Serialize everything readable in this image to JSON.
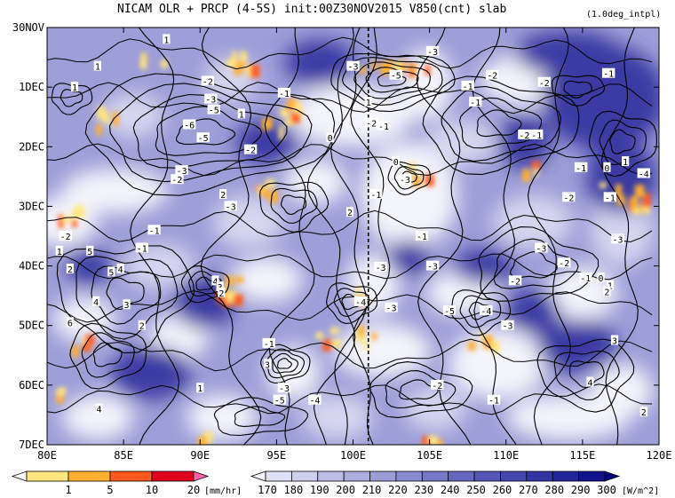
{
  "chart_data": {
    "type": "heatmap",
    "title": "NICAM  OLR + PRCP (4-5S) init:00Z30NOV2015 V850(cnt) slab",
    "note": "(1.0deg_intpl)",
    "x_ticks": [
      "80E",
      "85E",
      "90E",
      "95E",
      "100E",
      "105E",
      "110E",
      "115E",
      "120E"
    ],
    "y_ticks": [
      "30NOV",
      "1DEC",
      "2DEC",
      "3DEC",
      "4DEC",
      "5DEC",
      "6DEC",
      "7DEC"
    ],
    "x_range": [
      80,
      120
    ],
    "y_range_days": [
      0,
      7
    ],
    "reference_line_lon": 101,
    "prcp_colorbar": {
      "levels": [
        "1",
        "5",
        "10",
        "20"
      ],
      "unit": "[mm/hr]",
      "colors": [
        "#ffffff",
        "#ffe680",
        "#ffb030",
        "#ff5a1e",
        "#e0001e",
        "#ff66aa"
      ]
    },
    "olr_colorbar": {
      "levels": [
        "170",
        "180",
        "190",
        "200",
        "210",
        "220",
        "230",
        "240",
        "250",
        "260",
        "270",
        "280",
        "290",
        "300"
      ],
      "unit": "[W/m^2]",
      "colors": [
        "#f2f2fb",
        "#e0e0f4",
        "#cfcfee",
        "#bdbde7",
        "#acacdf",
        "#9b9bd8",
        "#8a8ad0",
        "#7878c8",
        "#6767c0",
        "#5656b7",
        "#4545ae",
        "#3434a5",
        "#23239c",
        "#12128f",
        "#06067e"
      ]
    },
    "contour_labels": [
      {
        "lon": 81.8,
        "day": 1.0,
        "text": "1"
      },
      {
        "lon": 83.3,
        "day": 0.65,
        "text": "1"
      },
      {
        "lon": 87.8,
        "day": 0.2,
        "text": "1"
      },
      {
        "lon": 90.5,
        "day": 0.9,
        "text": "-2"
      },
      {
        "lon": 90.7,
        "day": 1.2,
        "text": "-3"
      },
      {
        "lon": 90.9,
        "day": 1.38,
        "text": "-5"
      },
      {
        "lon": 89.3,
        "day": 1.63,
        "text": "-6"
      },
      {
        "lon": 90.2,
        "day": 1.85,
        "text": "-5"
      },
      {
        "lon": 88.5,
        "day": 2.55,
        "text": "-2"
      },
      {
        "lon": 88.8,
        "day": 2.4,
        "text": "-3"
      },
      {
        "lon": 92.7,
        "day": 1.45,
        "text": "1"
      },
      {
        "lon": 95.5,
        "day": 1.1,
        "text": "-1"
      },
      {
        "lon": 100.0,
        "day": 0.65,
        "text": "-3"
      },
      {
        "lon": 102.8,
        "day": 0.8,
        "text": "-5"
      },
      {
        "lon": 105.2,
        "day": 0.4,
        "text": "-3"
      },
      {
        "lon": 102.0,
        "day": 1.65,
        "text": "-1"
      },
      {
        "lon": 101.2,
        "day": 1.6,
        "text": "-2"
      },
      {
        "lon": 98.5,
        "day": 1.85,
        "text": "0"
      },
      {
        "lon": 101.5,
        "day": 2.8,
        "text": "-1"
      },
      {
        "lon": 103.4,
        "day": 2.55,
        "text": "-3"
      },
      {
        "lon": 99.8,
        "day": 3.1,
        "text": "2"
      },
      {
        "lon": 93.3,
        "day": 2.05,
        "text": "-2"
      },
      {
        "lon": 91.5,
        "day": 2.8,
        "text": "2"
      },
      {
        "lon": 92.0,
        "day": 3.0,
        "text": "-3"
      },
      {
        "lon": 87.0,
        "day": 3.4,
        "text": "-1"
      },
      {
        "lon": 81.2,
        "day": 3.5,
        "text": "-2"
      },
      {
        "lon": 80.8,
        "day": 3.75,
        "text": "1"
      },
      {
        "lon": 86.2,
        "day": 3.7,
        "text": "-1"
      },
      {
        "lon": 81.5,
        "day": 4.05,
        "text": "2"
      },
      {
        "lon": 82.8,
        "day": 3.75,
        "text": "5"
      },
      {
        "lon": 84.8,
        "day": 4.05,
        "text": "4"
      },
      {
        "lon": 84.2,
        "day": 4.1,
        "text": "5"
      },
      {
        "lon": 83.2,
        "day": 4.6,
        "text": "4"
      },
      {
        "lon": 85.2,
        "day": 4.65,
        "text": "3"
      },
      {
        "lon": 86.2,
        "day": 5.0,
        "text": "2"
      },
      {
        "lon": 81.5,
        "day": 4.95,
        "text": "6"
      },
      {
        "lon": 91.0,
        "day": 4.25,
        "text": "4"
      },
      {
        "lon": 91.3,
        "day": 4.35,
        "text": "3"
      },
      {
        "lon": 91.4,
        "day": 4.45,
        "text": "2"
      },
      {
        "lon": 94.5,
        "day": 5.3,
        "text": "-1"
      },
      {
        "lon": 94.4,
        "day": 5.65,
        "text": "3"
      },
      {
        "lon": 95.5,
        "day": 6.05,
        "text": "-3"
      },
      {
        "lon": 95.2,
        "day": 6.25,
        "text": "-5"
      },
      {
        "lon": 97.5,
        "day": 6.25,
        "text": "-4"
      },
      {
        "lon": 90.0,
        "day": 6.05,
        "text": "1"
      },
      {
        "lon": 83.4,
        "day": 6.4,
        "text": "4"
      },
      {
        "lon": 100.5,
        "day": 4.6,
        "text": "-4"
      },
      {
        "lon": 101.8,
        "day": 4.02,
        "text": "-3"
      },
      {
        "lon": 104.5,
        "day": 3.5,
        "text": "-1"
      },
      {
        "lon": 105.2,
        "day": 4.0,
        "text": "-3"
      },
      {
        "lon": 102.5,
        "day": 4.7,
        "text": "-3"
      },
      {
        "lon": 106.3,
        "day": 4.75,
        "text": "-5"
      },
      {
        "lon": 108.7,
        "day": 4.75,
        "text": "-4"
      },
      {
        "lon": 110.1,
        "day": 5.0,
        "text": "-3"
      },
      {
        "lon": 110.6,
        "day": 4.25,
        "text": "-2"
      },
      {
        "lon": 112.3,
        "day": 3.7,
        "text": "-3"
      },
      {
        "lon": 113.8,
        "day": 3.95,
        "text": "-2"
      },
      {
        "lon": 115.2,
        "day": 4.2,
        "text": "-1"
      },
      {
        "lon": 116.2,
        "day": 4.2,
        "text": "0"
      },
      {
        "lon": 116.8,
        "day": 4.33,
        "text": "1"
      },
      {
        "lon": 116.6,
        "day": 4.43,
        "text": "2"
      },
      {
        "lon": 117.3,
        "day": 3.55,
        "text": "-3"
      },
      {
        "lon": 117.1,
        "day": 5.25,
        "text": "3"
      },
      {
        "lon": 115.5,
        "day": 5.95,
        "text": "4"
      },
      {
        "lon": 119.0,
        "day": 6.45,
        "text": "2"
      },
      {
        "lon": 105.5,
        "day": 6.0,
        "text": "-2"
      },
      {
        "lon": 109.2,
        "day": 6.25,
        "text": "-1"
      },
      {
        "lon": 107.5,
        "day": 0.98,
        "text": "-1"
      },
      {
        "lon": 108.0,
        "day": 1.25,
        "text": "-1"
      },
      {
        "lon": 109.1,
        "day": 0.8,
        "text": "-2"
      },
      {
        "lon": 112.5,
        "day": 0.92,
        "text": "-2"
      },
      {
        "lon": 111.2,
        "day": 1.8,
        "text": "-2"
      },
      {
        "lon": 112.0,
        "day": 1.8,
        "text": "-1"
      },
      {
        "lon": 116.7,
        "day": 0.77,
        "text": "-1"
      },
      {
        "lon": 114.9,
        "day": 2.35,
        "text": "-1"
      },
      {
        "lon": 116.6,
        "day": 2.35,
        "text": "0"
      },
      {
        "lon": 117.8,
        "day": 2.25,
        "text": "1"
      },
      {
        "lon": 114.1,
        "day": 2.85,
        "text": "-2"
      },
      {
        "lon": 116.8,
        "day": 2.85,
        "text": "-1"
      },
      {
        "lon": 119.0,
        "day": 2.45,
        "text": "-4"
      },
      {
        "lon": 101.0,
        "day": 1.25,
        "text": "1"
      },
      {
        "lon": 102.8,
        "day": 2.25,
        "text": "0"
      }
    ]
  }
}
